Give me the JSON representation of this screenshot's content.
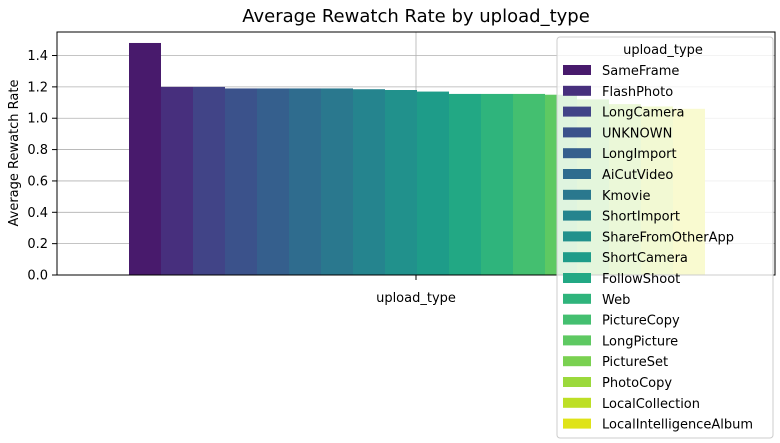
{
  "chart_data": {
    "type": "bar",
    "title": "Average Rewatch Rate by upload_type",
    "xlabel": "upload_type",
    "ylabel": "Average Rewatch Rate",
    "ylim": [
      0,
      1.55
    ],
    "yticks": [
      "0.0",
      "0.2",
      "0.4",
      "0.6",
      "0.8",
      "1.0",
      "1.2",
      "1.4"
    ],
    "grid": true,
    "legend_title": "upload_type",
    "legend_position": "upper-right",
    "series": [
      {
        "name": "SameFrame",
        "value": 1.48,
        "color": "#481a6c"
      },
      {
        "name": "FlashPhoto",
        "value": 1.2,
        "color": "#472f7d"
      },
      {
        "name": "LongCamera",
        "value": 1.2,
        "color": "#414487"
      },
      {
        "name": "UNKNOWN",
        "value": 1.19,
        "color": "#3b528b"
      },
      {
        "name": "LongImport",
        "value": 1.19,
        "color": "#355f8d"
      },
      {
        "name": "AiCutVideo",
        "value": 1.19,
        "color": "#2f6c8e"
      },
      {
        "name": "Kmovie",
        "value": 1.19,
        "color": "#2a788e"
      },
      {
        "name": "ShortImport",
        "value": 1.185,
        "color": "#25848e"
      },
      {
        "name": "ShareFromOtherApp",
        "value": 1.18,
        "color": "#21918c"
      },
      {
        "name": "ShortCamera",
        "value": 1.17,
        "color": "#1e9c89"
      },
      {
        "name": "FollowShoot",
        "value": 1.155,
        "color": "#22a884"
      },
      {
        "name": "Web",
        "value": 1.155,
        "color": "#2fb47c"
      },
      {
        "name": "PictureCopy",
        "value": 1.155,
        "color": "#44bf70"
      },
      {
        "name": "LongPicture",
        "value": 1.15,
        "color": "#5ec962"
      },
      {
        "name": "PictureSet",
        "value": 1.12,
        "color": "#7ad151"
      },
      {
        "name": "PhotoCopy",
        "value": 1.09,
        "color": "#9bd93c"
      },
      {
        "name": "LocalCollection",
        "value": 1.075,
        "color": "#bddf26"
      },
      {
        "name": "LocalIntelligenceAlbum",
        "value": 1.06,
        "color": "#dfe318"
      }
    ]
  }
}
